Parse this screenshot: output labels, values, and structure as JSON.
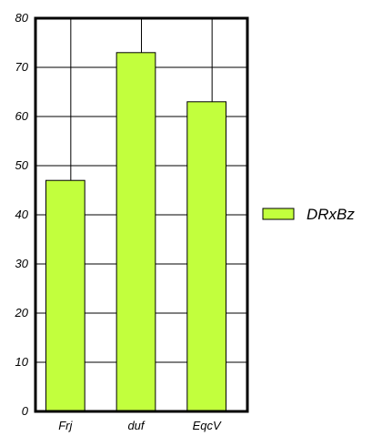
{
  "chart_data": {
    "type": "bar",
    "categories": [
      "Frj",
      "duf",
      "EqcV"
    ],
    "series": [
      {
        "name": "DRxBz",
        "values": [
          47,
          73,
          63
        ]
      }
    ],
    "ylim": [
      0,
      80
    ],
    "yticks": [
      0,
      10,
      20,
      30,
      40,
      50,
      60,
      70,
      80
    ],
    "grid": true,
    "legend_position": "right",
    "bar_color": "#c2ff3d"
  }
}
